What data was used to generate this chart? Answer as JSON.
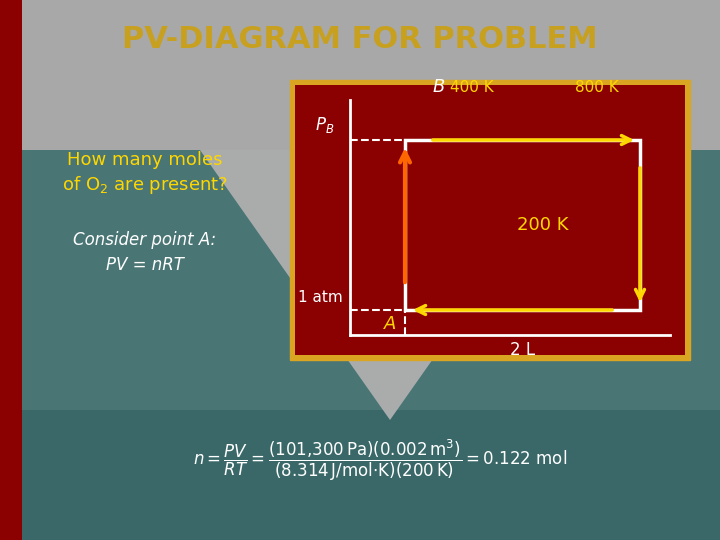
{
  "title": "PV-DIAGRAM FOR PROBLEM",
  "title_color": "#C8A020",
  "title_fontsize": 22,
  "bg_teal": "#4A7575",
  "bg_gray": "#A0A0A0",
  "bg_dark_teal": "#3A6868",
  "left_bar_color": "#8B0000",
  "left_text1": "How many moles",
  "left_text2": "of O$_2$ are present?",
  "left_text_color": "#FFD700",
  "left_text4": "Consider point A:",
  "left_text5": "PV = nRT",
  "left_text_white": "#FFFFFF",
  "box_border_color": "#DAA520",
  "box_bg_color": "#8B0000",
  "inner_text_white": "#FFFFFF",
  "inner_text_yellow": "#FFD700",
  "arrow_orange": "#FF6600",
  "arrow_yellow": "#FFD700"
}
